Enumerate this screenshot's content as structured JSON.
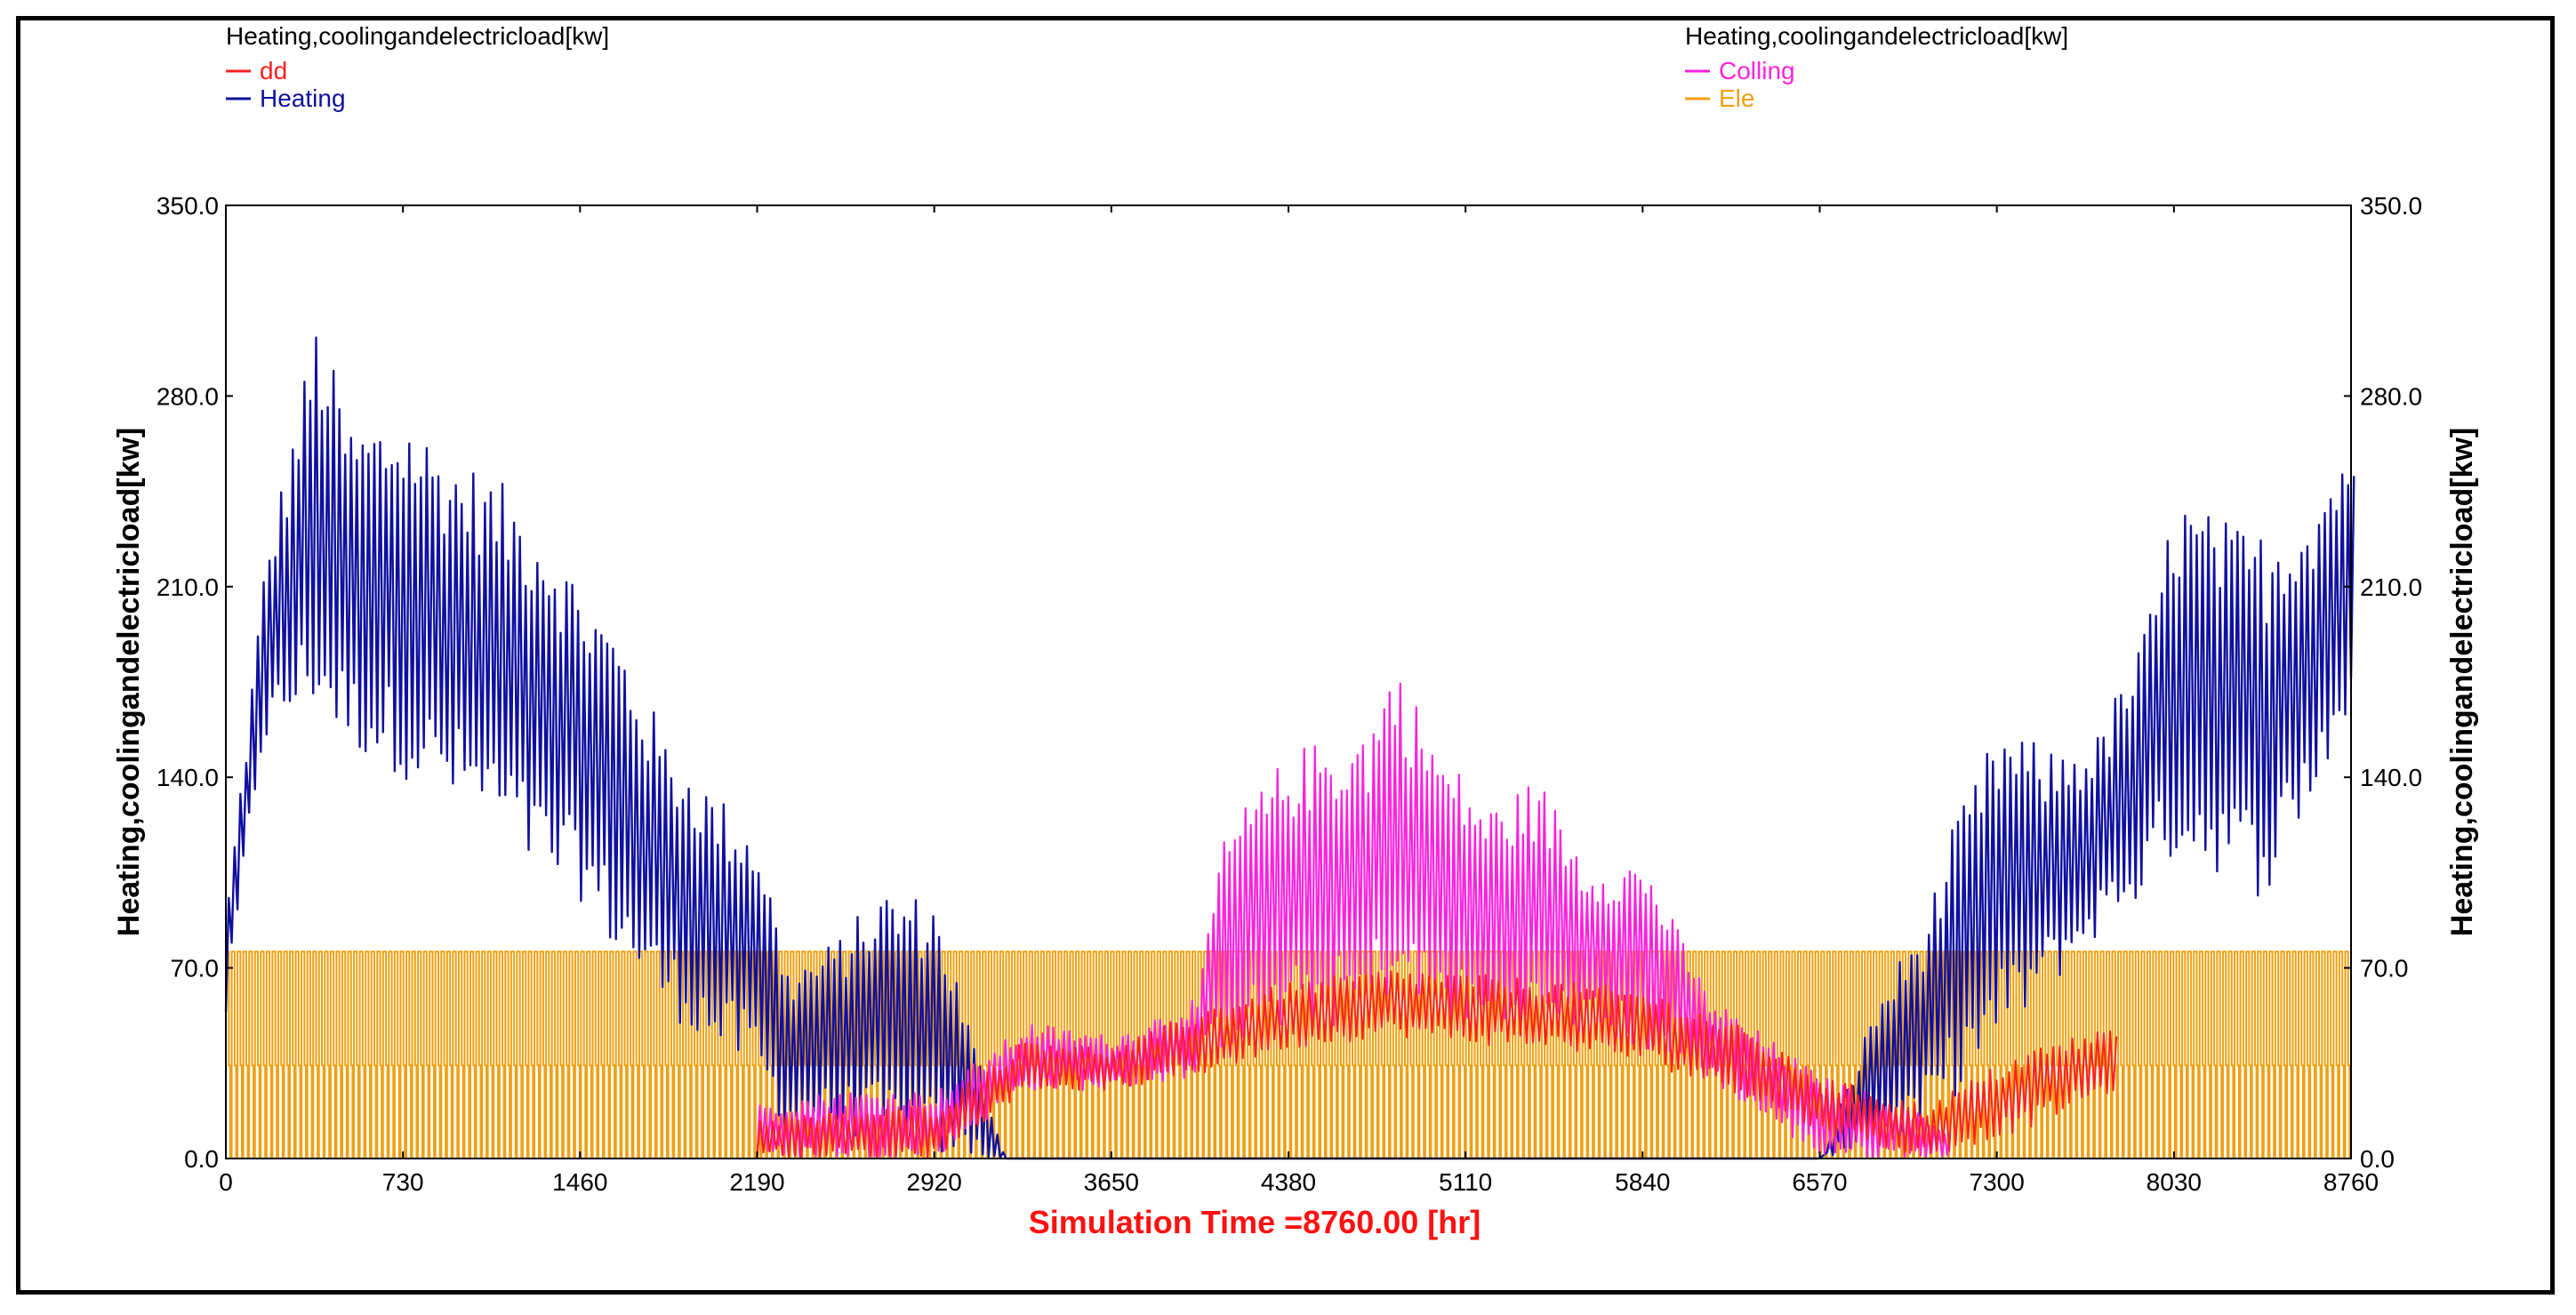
{
  "chart_data": {
    "type": "line",
    "legend_left": {
      "header": "Heating,coolingandelectricload[kw]",
      "entries": [
        {
          "name": "dd",
          "color": "#ff2020"
        },
        {
          "name": "Heating",
          "color": "#1010a0"
        }
      ]
    },
    "legend_right": {
      "header": "Heating,coolingandelectricload[kw]",
      "entries": [
        {
          "name": "Colling",
          "color": "#ff22dd"
        },
        {
          "name": "Ele",
          "color": "#f0a010"
        }
      ]
    },
    "ylabel_left": "Heating,coolingandelectricload[kw]",
    "ylabel_right": "Heating,coolingandelectricload[kw]",
    "xlabel": "Simulation Time =8760.00 [hr]",
    "xlim": [
      0,
      8760
    ],
    "ylim": [
      0,
      350
    ],
    "x_ticks": [
      "0",
      "730",
      "1460",
      "2190",
      "2920",
      "3650",
      "4380",
      "5110",
      "5840",
      "6570",
      "7300",
      "8030",
      "8760"
    ],
    "y_ticks": [
      "0.0",
      "70.0",
      "140.0",
      "210.0",
      "280.0",
      "350.0"
    ],
    "grid": false,
    "series": [
      {
        "name": "Heating",
        "color": "#1010a0",
        "envelope_x": [
          0,
          150,
          365,
          500,
          730,
          900,
          1100,
          1300,
          1460,
          1600,
          1800,
          2000,
          2190,
          2300,
          2500,
          2700,
          2920,
          3200,
          6570,
          6800,
          7000,
          7100,
          7300,
          7500,
          7700,
          7900,
          8030,
          8200,
          8400,
          8600,
          8760
        ],
        "envelope_high": [
          100,
          220,
          310,
          270,
          275,
          260,
          250,
          235,
          210,
          195,
          155,
          135,
          120,
          70,
          80,
          100,
          95,
          0,
          0,
          60,
          90,
          120,
          160,
          150,
          155,
          195,
          245,
          235,
          230,
          245,
          270
        ],
        "envelope_low": [
          50,
          150,
          165,
          150,
          140,
          130,
          120,
          100,
          95,
          75,
          55,
          40,
          30,
          10,
          10,
          5,
          0,
          0,
          0,
          5,
          10,
          20,
          40,
          60,
          80,
          95,
          110,
          105,
          95,
          130,
          160
        ]
      },
      {
        "name": "Colling",
        "color": "#ff22dd",
        "envelope_x": [
          2190,
          2500,
          2920,
          3300,
          3650,
          4000,
          4100,
          4380,
          4700,
          4800,
          5000,
          5200,
          5400,
          5600,
          5840,
          6100,
          6570,
          6900,
          7100
        ],
        "envelope_high": [
          20,
          25,
          25,
          50,
          45,
          60,
          120,
          150,
          160,
          185,
          150,
          130,
          140,
          110,
          110,
          60,
          30,
          20,
          10
        ],
        "envelope_low": [
          0,
          0,
          0,
          25,
          25,
          30,
          40,
          45,
          50,
          60,
          50,
          45,
          45,
          45,
          40,
          30,
          0,
          0,
          0
        ]
      },
      {
        "name": "dd",
        "color": "#ff2020",
        "envelope_x": [
          2190,
          2920,
          3300,
          3650,
          4000,
          4380,
          4800,
          5110,
          5500,
          5840,
          6200,
          6570,
          7000,
          7400,
          7800
        ],
        "envelope_high": [
          15,
          20,
          45,
          40,
          55,
          65,
          70,
          68,
          65,
          62,
          50,
          30,
          20,
          40,
          50
        ],
        "envelope_low": [
          0,
          0,
          25,
          25,
          30,
          40,
          45,
          42,
          40,
          35,
          25,
          10,
          0,
          10,
          25
        ]
      },
      {
        "name": "Ele",
        "color": "#f0a010",
        "daily_peak": 76,
        "daily_base": 0,
        "period_hours": 24
      }
    ]
  }
}
